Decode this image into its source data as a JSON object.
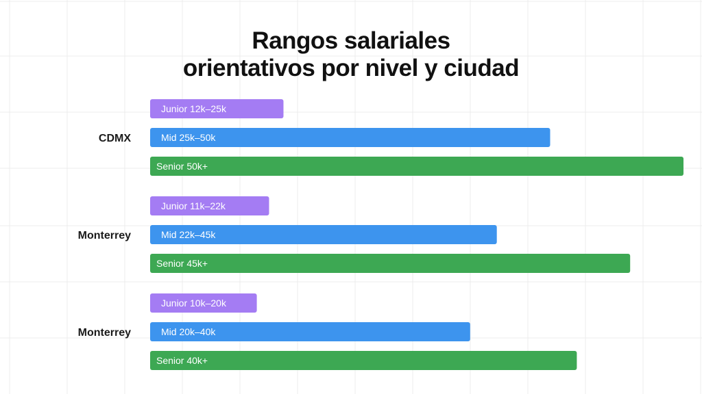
{
  "chart_data": {
    "type": "bar",
    "orientation": "horizontal",
    "title": "Rangos salariales orientativos por nivel y ciudad",
    "title_lines": [
      "Rangos salariales",
      "orientativos por nivel y ciudad"
    ],
    "xlabel": "",
    "ylabel": "",
    "grid": true,
    "legend": "none",
    "xlim": [
      0,
      100
    ],
    "colors": {
      "junior": "#a47cf3",
      "mid": "#3d94ee",
      "senior": "#3da853"
    },
    "groups": [
      {
        "city": "CDMX",
        "bars": [
          {
            "level": "junior",
            "label": "Junior 12k–25k",
            "value": 25
          },
          {
            "level": "mid",
            "label": "Mid 25k–50k",
            "value": 75
          },
          {
            "level": "senior",
            "label": "Senior 50k+",
            "value": 100
          }
        ]
      },
      {
        "city": "Monterrey",
        "bars": [
          {
            "level": "junior",
            "label": "Junior 11k–22k",
            "value": 22.3
          },
          {
            "level": "mid",
            "label": "Mid 22k–45k",
            "value": 65
          },
          {
            "level": "senior",
            "label": "Senior 45k+",
            "value": 90
          }
        ]
      },
      {
        "city": "Monterrey",
        "bars": [
          {
            "level": "junior",
            "label": "Junior 10k–20k",
            "value": 20
          },
          {
            "level": "mid",
            "label": "Mid 20k–40k",
            "value": 60
          },
          {
            "level": "senior",
            "label": "Senior 40k+",
            "value": 80
          }
        ]
      }
    ]
  }
}
